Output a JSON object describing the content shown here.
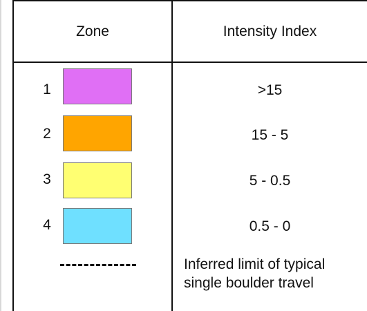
{
  "legend": {
    "header": {
      "zone": "Zone",
      "intensity": "Intensity Index"
    },
    "rows": [
      {
        "zone": "1",
        "color": "#e06ff5",
        "range": ">15"
      },
      {
        "zone": "2",
        "color": "#ffa500",
        "range": "15 -  5"
      },
      {
        "zone": "3",
        "color": "#ffff72",
        "range": "5 - 0.5"
      },
      {
        "zone": "4",
        "color": "#6fe0ff",
        "range": "0.5 - 0"
      }
    ],
    "limit": {
      "line_style": "dashed",
      "line1": "Inferred limit of typical",
      "line2": "single boulder travel"
    }
  }
}
